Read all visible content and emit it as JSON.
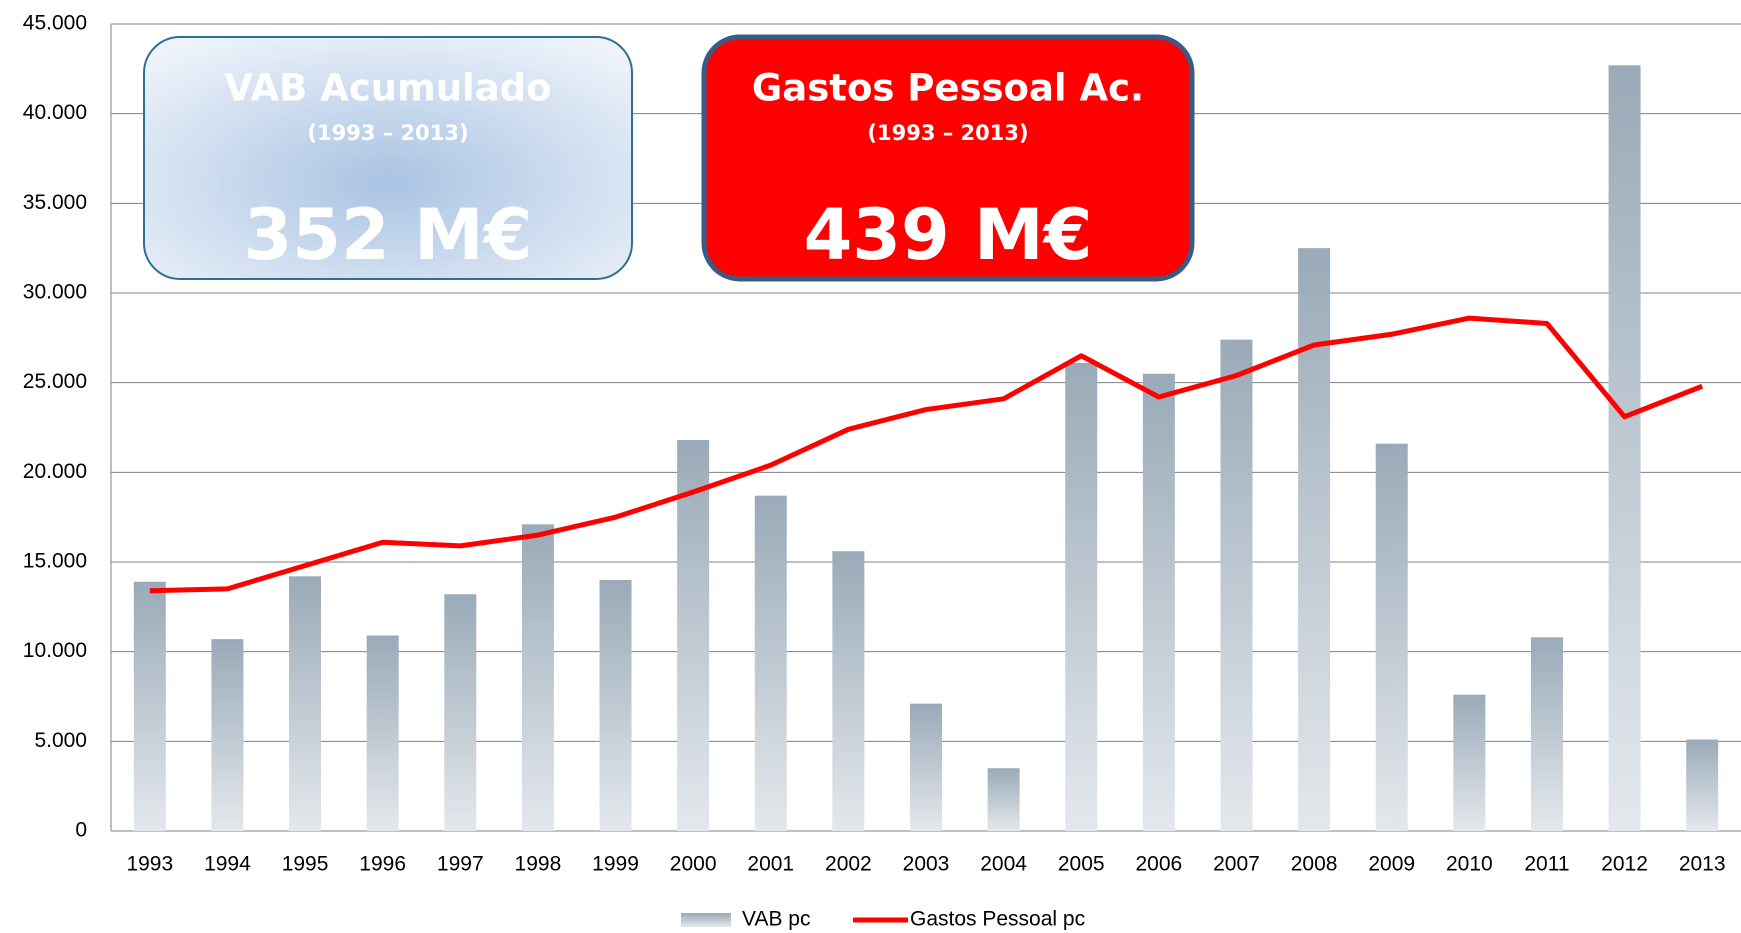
{
  "chart_data": {
    "type": "bar_line",
    "categories": [
      "1993",
      "1994",
      "1995",
      "1996",
      "1997",
      "1998",
      "1999",
      "2000",
      "2001",
      "2002",
      "2003",
      "2004",
      "2005",
      "2006",
      "2007",
      "2008",
      "2009",
      "2010",
      "2011",
      "2012",
      "2013"
    ],
    "series": [
      {
        "name": "VAB pc",
        "type": "bar",
        "color": "#9aaab8",
        "values": [
          13900,
          10700,
          14200,
          10900,
          13200,
          17100,
          14000,
          21800,
          18700,
          15600,
          7100,
          3500,
          26100,
          25500,
          27400,
          32500,
          21600,
          7600,
          10800,
          42700,
          5100
        ]
      },
      {
        "name": "Gastos Pessoal pc",
        "type": "line",
        "color": "#ff0000",
        "values": [
          13400,
          13500,
          14800,
          16100,
          15900,
          16500,
          17500,
          18900,
          20400,
          22400,
          23500,
          24100,
          26500,
          24200,
          25400,
          27100,
          27700,
          28600,
          28300,
          23100,
          24800
        ]
      }
    ],
    "ylim": [
      0,
      45000
    ],
    "yticks": [
      0,
      {
        "value": 5000,
        "label": "5.000"
      },
      {
        "value": 10000,
        "label": "10.000"
      },
      {
        "value": 15000,
        "label": "15.000"
      },
      {
        "value": 20000,
        "label": "20.000"
      },
      {
        "value": 25000,
        "label": "25.000"
      },
      {
        "value": 30000,
        "label": "30.000"
      },
      {
        "value": 35000,
        "label": "35.000"
      },
      {
        "value": 40000,
        "label": "40.000"
      },
      {
        "value": 45000,
        "label": "45.000"
      }
    ],
    "grid": true,
    "legend": "bottom",
    "annotations": [
      {
        "title": "VAB  Acumulado",
        "subtitle": "(1993 – 2013)",
        "value": "352 M€"
      },
      {
        "title": "Gastos Pessoal  Ac.",
        "subtitle": "(1993 – 2013)",
        "value": "439 M€"
      }
    ]
  }
}
